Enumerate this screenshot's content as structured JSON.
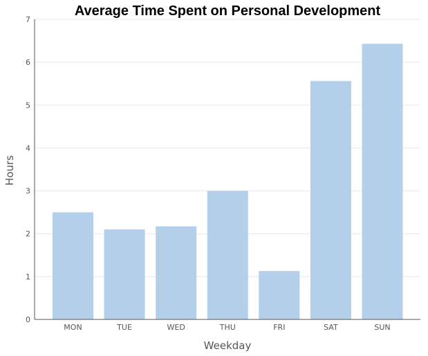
{
  "chart_data": {
    "type": "bar",
    "title": "Average Time Spent on Personal Development",
    "xlabel": "Weekday",
    "ylabel": "Hours",
    "categories": [
      "MON",
      "TUE",
      "WED",
      "THU",
      "FRI",
      "SAT",
      "SUN"
    ],
    "values": [
      2.5,
      2.1,
      2.17,
      3.0,
      1.13,
      5.56,
      6.43
    ],
    "ylim": [
      0,
      7
    ],
    "yticks": [
      0,
      1,
      2,
      3,
      4,
      5,
      6,
      7
    ],
    "grid": true,
    "legend": "none",
    "bar_color": "#b3cfea"
  }
}
